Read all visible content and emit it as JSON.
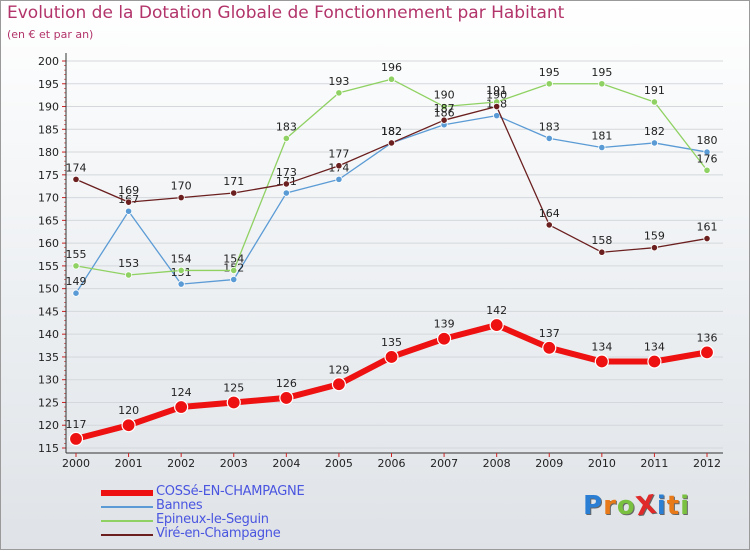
{
  "title": "Evolution de la Dotation Globale de Fonctionnement par Habitant",
  "subtitle": "(en € et par an)",
  "logo": {
    "text": "ProXiti",
    "colors": [
      "#2a7fd4",
      "#e87a1a",
      "#7ac142",
      "#e02a2a",
      "#2a7fd4",
      "#e87a1a",
      "#7ac142"
    ]
  },
  "chart_data": {
    "type": "line",
    "title": "Evolution de la Dotation Globale de Fonctionnement par Habitant",
    "xlabel": "",
    "ylabel": "(en € et par an)",
    "ylim": [
      115,
      200
    ],
    "yticks": [
      115,
      120,
      125,
      130,
      135,
      140,
      145,
      150,
      155,
      160,
      165,
      170,
      175,
      180,
      185,
      190,
      195,
      200
    ],
    "x": [
      "2000",
      "2001",
      "2002",
      "2003",
      "2004",
      "2005",
      "2006",
      "2007",
      "2008",
      "2009",
      "2010",
      "2011",
      "2012"
    ],
    "legend_position": "bottom-left",
    "series": [
      {
        "name": "Bannes",
        "color": "#5b9bd5",
        "values": [
          149,
          167,
          151,
          152,
          171,
          174,
          182,
          186,
          188,
          183,
          181,
          182,
          180
        ]
      },
      {
        "name": "Epineux-le-Seguin",
        "color": "#8fd162",
        "values": [
          155,
          153,
          154,
          154,
          183,
          193,
          196,
          190,
          191,
          195,
          195,
          191,
          176
        ]
      },
      {
        "name": "Viré-en-Champagne",
        "color": "#6b1f1f",
        "values": [
          174,
          169,
          170,
          171,
          173,
          177,
          182,
          187,
          190,
          164,
          158,
          159,
          161
        ]
      },
      {
        "name": "COSSé-EN-CHAMPAGNE",
        "color": "#ee1111",
        "values": [
          117,
          120,
          124,
          125,
          126,
          129,
          135,
          139,
          142,
          137,
          134,
          134,
          136
        ]
      }
    ],
    "legend_order": [
      "COSSé-EN-CHAMPAGNE",
      "Bannes",
      "Epineux-le-Seguin",
      "Viré-en-Champagne"
    ]
  }
}
